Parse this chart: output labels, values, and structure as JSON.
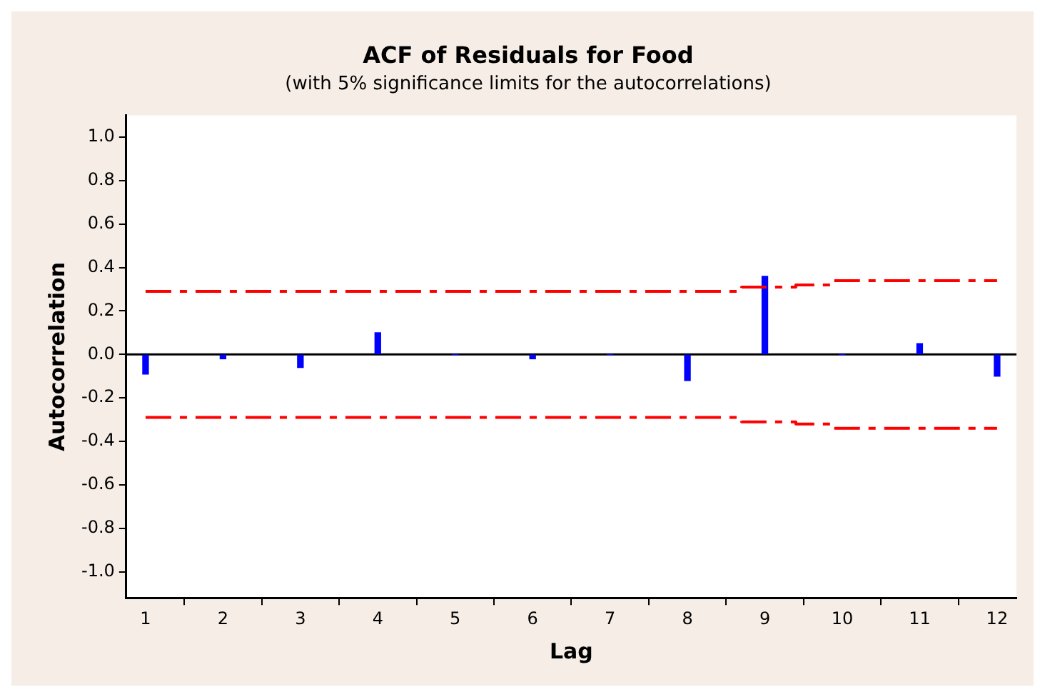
{
  "chart_data": {
    "type": "bar",
    "title": "ACF of Residuals for Food",
    "subtitle": "(with 5% significance limits for the autocorrelations)",
    "xlabel": "Lag",
    "ylabel": "Autocorrelation",
    "x": [
      1,
      2,
      3,
      4,
      5,
      6,
      7,
      8,
      9,
      10,
      11,
      12
    ],
    "series": [
      {
        "color": "#0000ff",
        "values": [
          -0.09,
          -0.02,
          -0.06,
          0.1,
          0,
          -0.02,
          0,
          -0.12,
          0.36,
          0,
          0.05,
          -0.1
        ]
      },
      {
        "type": "line",
        "color": "#ff0000",
        "line_style": "dashed",
        "x": [
          1,
          8.7,
          8.7,
          9.4,
          9.4,
          9.85,
          9.85,
          12
        ],
        "values": [
          0.29,
          0.29,
          0.31,
          0.31,
          0.32,
          0.32,
          0.34,
          0.34
        ]
      },
      {
        "type": "line",
        "color": "#ff0000",
        "line_style": "dashed",
        "x": [
          1,
          8.7,
          8.7,
          9.4,
          9.4,
          9.85,
          9.85,
          12
        ],
        "values": [
          -0.29,
          -0.29,
          -0.31,
          -0.31,
          -0.32,
          -0.32,
          -0.34,
          -0.34
        ]
      }
    ],
    "xlim": [
      0.75,
      12.25
    ],
    "xticks": [
      1,
      2,
      3,
      4,
      5,
      6,
      7,
      8,
      9,
      10,
      11,
      12
    ],
    "ylim": [
      -1.12,
      1.1
    ],
    "yticks": [
      {
        "value": -1,
        "label": "-1.0"
      },
      {
        "value": -0.8,
        "label": "-0.8"
      },
      {
        "value": -0.6,
        "label": "-0.6"
      },
      {
        "value": -0.4,
        "label": "-0.4"
      },
      {
        "value": -0.2,
        "label": "-0.2"
      },
      {
        "value": 0,
        "label": "0.0"
      },
      {
        "value": 0.2,
        "label": "0.2"
      },
      {
        "value": 0.4,
        "label": "0.4"
      },
      {
        "value": 0.6,
        "label": "0.6"
      },
      {
        "value": 0.8,
        "label": "0.8"
      },
      {
        "value": 1,
        "label": "1.0"
      }
    ],
    "ref_lines": [
      {
        "axis": "y",
        "value": 0,
        "color": "#000000"
      }
    ],
    "grid": false,
    "legend": false,
    "marker": "none"
  }
}
